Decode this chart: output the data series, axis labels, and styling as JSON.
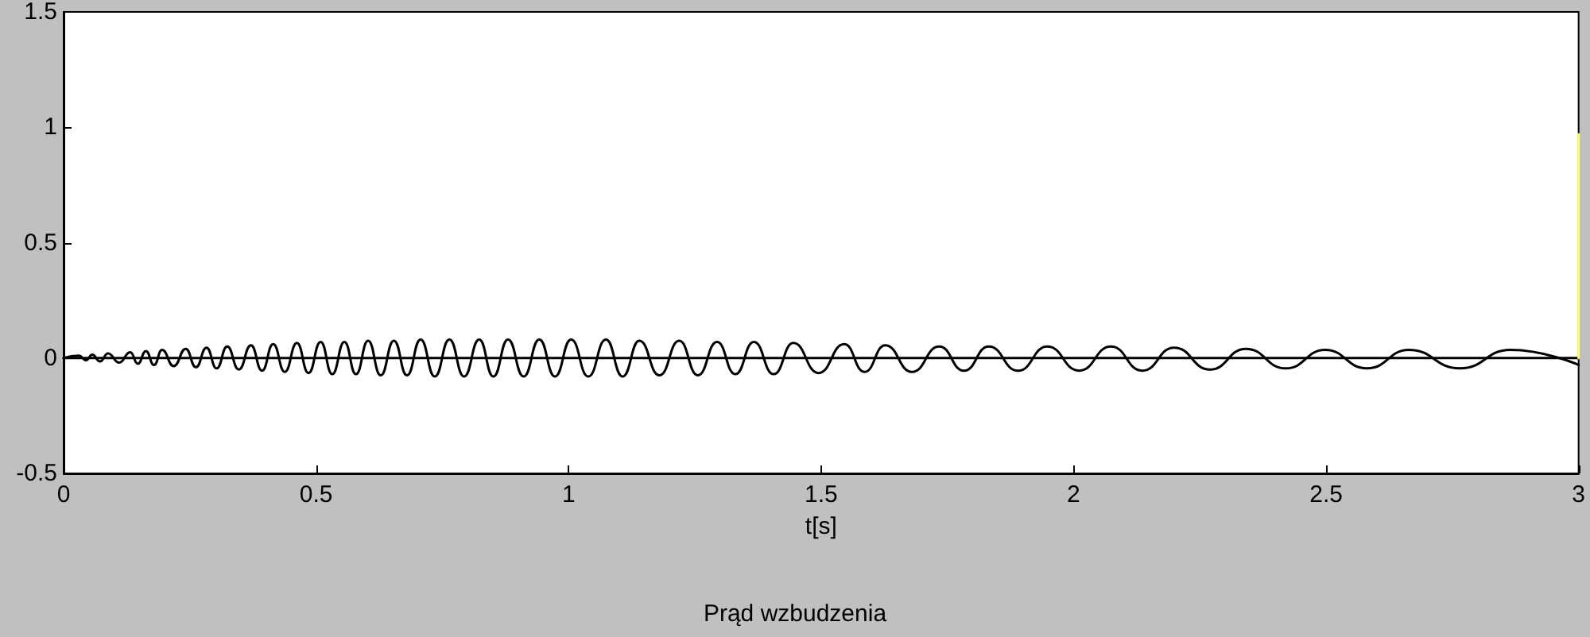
{
  "chart_data": {
    "type": "line",
    "title": "Prąd wzbudzenia",
    "xlabel": "t[s]",
    "xlim": [
      0,
      3
    ],
    "xticks": [
      0,
      0.5,
      1,
      1.5,
      2,
      2.5,
      3
    ],
    "ylim": [
      -0.5,
      1.5
    ],
    "yticks": [
      -0.5,
      0,
      0.5,
      1,
      1.5
    ],
    "grid": false,
    "marker": "none",
    "line_style": "solid",
    "series": [
      {
        "color": "#000000",
        "x": [
          0,
          0.031,
          0.044,
          0.057,
          0.072,
          0.088,
          0.11,
          0.132,
          0.147,
          0.163,
          0.179,
          0.195,
          0.218,
          0.242,
          0.262,
          0.283,
          0.303,
          0.324,
          0.347,
          0.371,
          0.393,
          0.415,
          0.438,
          0.462,
          0.485,
          0.509,
          0.532,
          0.556,
          0.579,
          0.603,
          0.628,
          0.654,
          0.68,
          0.707,
          0.735,
          0.764,
          0.793,
          0.823,
          0.851,
          0.88,
          0.911,
          0.942,
          0.973,
          1.005,
          1.039,
          1.074,
          1.107,
          1.14,
          1.18,
          1.219,
          1.256,
          1.294,
          1.33,
          1.367,
          1.406,
          1.445,
          1.495,
          1.546,
          1.586,
          1.627,
          1.68,
          1.734,
          1.783,
          1.832,
          1.89,
          1.948,
          2.011,
          2.074,
          2.136,
          2.199,
          2.27,
          2.341,
          2.42,
          2.498,
          2.581,
          2.664,
          2.765,
          2.865,
          3
        ],
        "values": [
          0,
          0.01,
          -0.01,
          0.015,
          -0.015,
          0.02,
          -0.02,
          0.025,
          -0.025,
          0.03,
          -0.03,
          0.035,
          -0.035,
          0.04,
          -0.04,
          0.045,
          -0.045,
          0.05,
          -0.05,
          0.055,
          -0.055,
          0.06,
          -0.06,
          0.065,
          -0.065,
          0.07,
          -0.07,
          0.07,
          -0.07,
          0.075,
          -0.075,
          0.075,
          -0.075,
          0.08,
          -0.08,
          0.08,
          -0.08,
          0.08,
          -0.08,
          0.08,
          -0.08,
          0.08,
          -0.08,
          0.08,
          -0.08,
          0.08,
          -0.08,
          0.075,
          -0.075,
          0.075,
          -0.075,
          0.07,
          -0.07,
          0.07,
          -0.07,
          0.065,
          -0.065,
          0.06,
          -0.06,
          0.055,
          -0.06,
          0.05,
          -0.055,
          0.05,
          -0.055,
          0.05,
          -0.055,
          0.05,
          -0.055,
          0.045,
          -0.05,
          0.04,
          -0.045,
          0.035,
          -0.045,
          0.035,
          -0.045,
          0.035,
          -0.03
        ]
      },
      {
        "color": "#000000",
        "x": [
          0,
          3
        ],
        "values": [
          0,
          0
        ]
      },
      {
        "color": "#ffff66",
        "x": [
          3,
          3
        ],
        "values": [
          0,
          0.97
        ]
      }
    ]
  }
}
